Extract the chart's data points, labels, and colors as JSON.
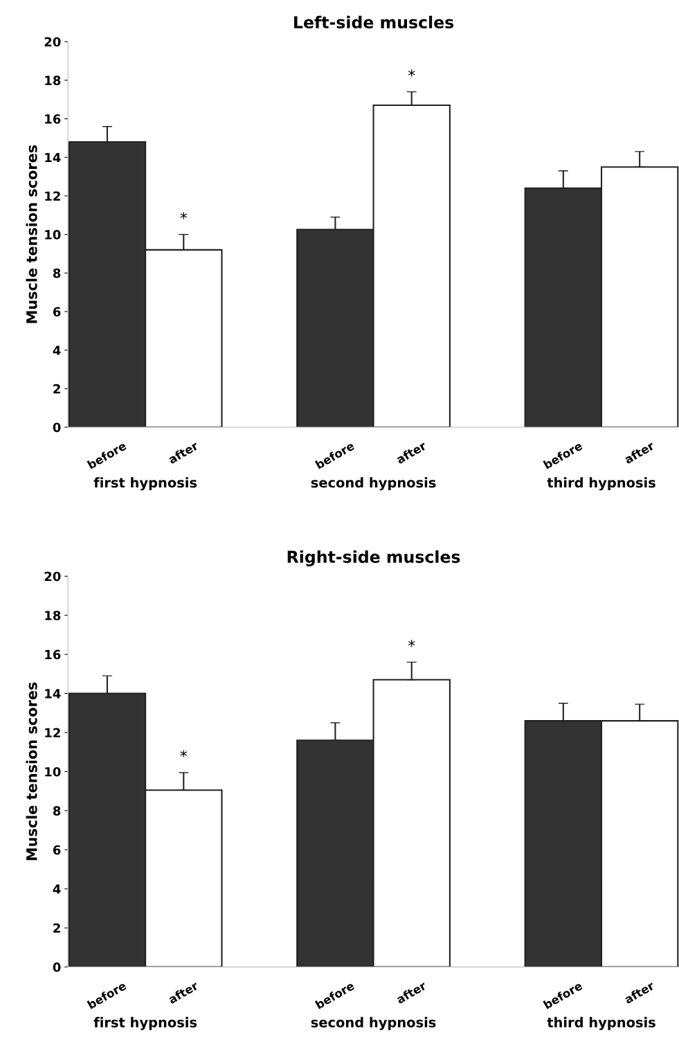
{
  "chart_data": [
    {
      "type": "bar",
      "title": "Left-side muscles",
      "ylabel": "Muscle tension scores",
      "categories": [
        "first hypnosis",
        "second hypnosis",
        "third hypnosis"
      ],
      "series": [
        {
          "name": "before",
          "color": "#333333",
          "values": [
            14.8,
            10.25,
            12.4
          ],
          "errors": [
            [
              14.8,
              15.6
            ],
            [
              10.25,
              10.9
            ],
            [
              12.4,
              13.3
            ]
          ]
        },
        {
          "name": "after",
          "color": "#ffffff",
          "values": [
            9.2,
            16.7,
            13.5
          ],
          "errors": [
            [
              9.2,
              10.0
            ],
            [
              16.7,
              17.4
            ],
            [
              13.5,
              14.3
            ]
          ],
          "value_labels": [
            "*",
            "*",
            null
          ]
        }
      ],
      "ylim": [
        0,
        20
      ],
      "yticks": [
        0,
        2,
        4,
        6,
        8,
        10,
        12,
        14,
        16,
        18,
        20
      ],
      "grid": false,
      "legend": false
    },
    {
      "type": "bar",
      "title": "Right-side muscles",
      "ylabel": "Muscle tension scores",
      "categories": [
        "first hypnosis",
        "second hypnosis",
        "third hypnosis"
      ],
      "series": [
        {
          "name": "before",
          "color": "#333333",
          "values": [
            14.0,
            11.6,
            12.6
          ],
          "errors": [
            [
              14.0,
              14.9
            ],
            [
              11.6,
              12.5
            ],
            [
              12.6,
              13.5
            ]
          ]
        },
        {
          "name": "after",
          "color": "#ffffff",
          "values": [
            9.05,
            14.7,
            12.6
          ],
          "errors": [
            [
              9.05,
              9.95
            ],
            [
              14.7,
              15.6
            ],
            [
              12.6,
              13.45
            ]
          ],
          "value_labels": [
            "*",
            "*",
            null
          ]
        }
      ],
      "ylim": [
        0,
        20
      ],
      "yticks": [
        0,
        2,
        4,
        6,
        8,
        10,
        12,
        14,
        16,
        18,
        20
      ],
      "grid": false,
      "legend": false
    }
  ]
}
